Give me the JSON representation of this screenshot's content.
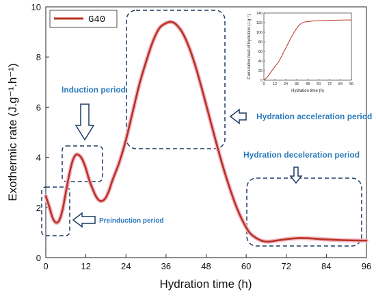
{
  "chart_data": {
    "main": {
      "type": "line",
      "xlabel": "Hydration time (h)",
      "ylabel": "Exothermic rate (J.g⁻¹.h⁻¹)",
      "xlim": [
        0,
        96
      ],
      "ylim": [
        0,
        10
      ],
      "xticks": [
        0,
        12,
        24,
        36,
        48,
        60,
        72,
        84,
        96
      ],
      "yticks": [
        0,
        2,
        4,
        6,
        8,
        10
      ],
      "legend": "top-left",
      "series": [
        {
          "name": "G40",
          "color": "#b83221",
          "x": [
            0,
            1,
            2,
            3,
            4,
            5,
            6,
            7,
            8,
            9,
            10,
            11,
            12,
            13,
            14,
            15,
            16,
            17,
            18,
            19,
            20,
            22,
            24,
            26,
            28,
            30,
            32,
            34,
            36,
            37.5,
            39,
            41,
            43,
            45,
            47,
            49,
            51,
            53,
            55,
            57,
            59,
            61,
            63,
            65,
            67,
            70,
            73,
            76,
            79,
            82,
            85,
            88,
            91,
            94,
            96
          ],
          "y": [
            2.45,
            2.05,
            1.6,
            1.4,
            1.48,
            1.9,
            2.6,
            3.3,
            3.85,
            4.1,
            4.08,
            3.9,
            3.55,
            3.1,
            2.75,
            2.45,
            2.28,
            2.27,
            2.4,
            2.7,
            3.1,
            3.8,
            4.7,
            5.8,
            6.9,
            7.8,
            8.6,
            9.15,
            9.35,
            9.4,
            9.3,
            8.95,
            8.35,
            7.55,
            6.6,
            5.6,
            4.6,
            3.65,
            2.8,
            2.05,
            1.45,
            1.0,
            0.78,
            0.66,
            0.64,
            0.7,
            0.75,
            0.78,
            0.77,
            0.74,
            0.72,
            0.7,
            0.69,
            0.68,
            0.68
          ]
        }
      ],
      "annotations": [
        {
          "text": "Induction period",
          "color": "#2b7bbd"
        },
        {
          "text": "Hydration acceleration period",
          "color": "#2b7bbd"
        },
        {
          "text": "Hydration deceleration period",
          "color": "#2b7bbd"
        },
        {
          "text": "Preinduction period",
          "color": "#2b7bbd"
        }
      ]
    },
    "inset": {
      "type": "line",
      "xlabel": "Hydration time (h)",
      "ylabel": "Cumulative heat of hydration (J.g⁻¹)",
      "xlim": [
        0,
        96
      ],
      "ylim": [
        0,
        140
      ],
      "xticks": [
        0,
        12,
        24,
        36,
        48,
        60,
        72,
        84,
        96
      ],
      "yticks": [
        0,
        20,
        40,
        60,
        80,
        100,
        120,
        140
      ],
      "series": [
        {
          "color": "#b83221",
          "x": [
            0,
            4,
            8,
            12,
            16,
            20,
            24,
            28,
            32,
            36,
            40,
            44,
            48,
            52,
            56,
            60,
            66,
            72,
            78,
            84,
            90,
            96
          ],
          "y": [
            0,
            7,
            18,
            28,
            38,
            52,
            67,
            82,
            96,
            108,
            117,
            121,
            122,
            123,
            123.5,
            124,
            124.5,
            125,
            125,
            125.3,
            125.5,
            125.6
          ]
        }
      ]
    }
  }
}
